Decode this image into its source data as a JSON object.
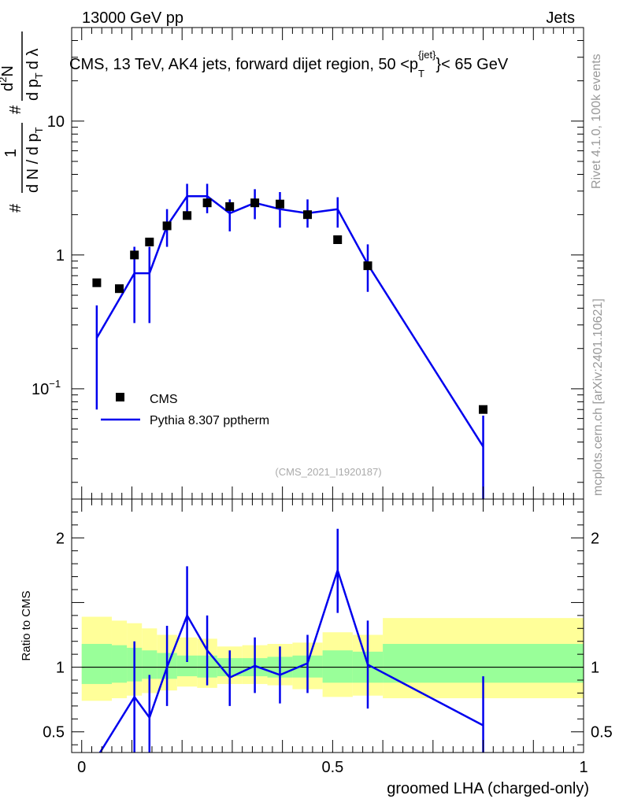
{
  "header": {
    "energy_label": "13000 GeV pp",
    "category_label": "Jets"
  },
  "side": {
    "rivet_label": "Rivet 4.1.0,  100k events",
    "site_label": "mcplots.cern.ch [arXiv:2401.10621]"
  },
  "chart_data": [
    {
      "type": "scatter",
      "panel": "main",
      "title": "CMS, 13 TeV, AK4 jets, forward dijet region, 50 <p_T^{jet}< 65 GeV",
      "title_parts": {
        "pre": "CMS, 13 TeV, AK4 jets, forward dijet region, 50 <p",
        "sub": "T",
        "sup": "{jet}",
        "post": "}< 65 GeV"
      },
      "ylabel_parts": [
        "#",
        "1",
        "d N / d p",
        "T",
        "#",
        "d",
        "N",
        "d p",
        "T",
        "d λ",
        "2"
      ],
      "y_scale": "log",
      "ylim": [
        0.015,
        50
      ],
      "xlim": [
        -0.02,
        1.0
      ],
      "y_ticks": [
        {
          "value": 0.1,
          "label": "10",
          "exp": "−1"
        },
        {
          "value": 1,
          "label": "1",
          "exp": ""
        },
        {
          "value": 10,
          "label": "10",
          "exp": ""
        }
      ],
      "watermark": "(CMS_2021_I1920187)",
      "legend": [
        {
          "name": "CMS",
          "marker": "square"
        },
        {
          "name": "Pythia 8.307 pptherm",
          "marker": "line"
        }
      ],
      "series": [
        {
          "name": "CMS",
          "x": [
            0.03,
            0.075,
            0.105,
            0.135,
            0.17,
            0.21,
            0.25,
            0.295,
            0.345,
            0.395,
            0.45,
            0.51,
            0.57,
            0.8
          ],
          "y": [
            0.62,
            0.56,
            1.0,
            1.25,
            1.65,
            1.97,
            2.45,
            2.3,
            2.45,
            2.4,
            2.0,
            1.3,
            0.83,
            0.07
          ]
        },
        {
          "name": "Pythia 8.307 pptherm",
          "x": [
            0.03,
            0.105,
            0.135,
            0.17,
            0.21,
            0.25,
            0.295,
            0.345,
            0.395,
            0.45,
            0.51,
            0.57,
            0.8
          ],
          "y": [
            0.24,
            0.73,
            0.73,
            1.65,
            2.75,
            2.75,
            2.05,
            2.45,
            2.2,
            2.05,
            2.2,
            0.85,
            0.037
          ],
          "err_low": [
            0.07,
            0.31,
            0.31,
            1.15,
            2.0,
            2.05,
            1.5,
            1.85,
            1.6,
            1.6,
            1.6,
            0.53,
            0.012
          ],
          "err_high": [
            0.42,
            1.15,
            1.15,
            2.2,
            3.4,
            3.4,
            2.6,
            3.1,
            2.95,
            2.6,
            2.7,
            1.2,
            0.063
          ]
        }
      ]
    },
    {
      "type": "line",
      "panel": "ratio",
      "ylabel": "Ratio to CMS",
      "xlabel": "groomed LHA (charged-only)",
      "y_scale": "linear",
      "xlim": [
        -0.02,
        1.0
      ],
      "ylim": [
        0.34,
        2.3
      ],
      "x_ticks": [
        {
          "value": 0,
          "label": "0"
        },
        {
          "value": 0.5,
          "label": "0.5"
        },
        {
          "value": 1,
          "label": "1"
        }
      ],
      "y_ticks": [
        {
          "value": 0.5,
          "label": "0.5"
        },
        {
          "value": 1,
          "label": "1"
        },
        {
          "value": 2,
          "label": "2"
        }
      ],
      "bands": [
        {
          "x0": 0.0,
          "x1": 0.06,
          "outer": [
            0.74,
            1.39
          ],
          "inner": [
            0.87,
            1.18
          ]
        },
        {
          "x0": 0.06,
          "x1": 0.09,
          "outer": [
            0.76,
            1.36
          ],
          "inner": [
            0.88,
            1.17
          ]
        },
        {
          "x0": 0.09,
          "x1": 0.12,
          "outer": [
            0.78,
            1.34
          ],
          "inner": [
            0.89,
            1.15
          ]
        },
        {
          "x0": 0.12,
          "x1": 0.15,
          "outer": [
            0.8,
            1.3
          ],
          "inner": [
            0.91,
            1.13
          ]
        },
        {
          "x0": 0.15,
          "x1": 0.19,
          "outer": [
            0.82,
            1.25
          ],
          "inner": [
            0.91,
            1.11
          ]
        },
        {
          "x0": 0.19,
          "x1": 0.23,
          "outer": [
            0.85,
            1.23
          ],
          "inner": [
            0.93,
            1.09
          ]
        },
        {
          "x0": 0.23,
          "x1": 0.27,
          "outer": [
            0.84,
            1.22
          ],
          "inner": [
            0.92,
            1.09
          ]
        },
        {
          "x0": 0.27,
          "x1": 0.32,
          "outer": [
            0.87,
            1.16
          ],
          "inner": [
            0.93,
            1.07
          ]
        },
        {
          "x0": 0.32,
          "x1": 0.37,
          "outer": [
            0.87,
            1.17
          ],
          "inner": [
            0.93,
            1.07
          ]
        },
        {
          "x0": 0.37,
          "x1": 0.42,
          "outer": [
            0.86,
            1.18
          ],
          "inner": [
            0.92,
            1.08
          ]
        },
        {
          "x0": 0.42,
          "x1": 0.48,
          "outer": [
            0.83,
            1.19
          ],
          "inner": [
            0.92,
            1.09
          ]
        },
        {
          "x0": 0.48,
          "x1": 0.54,
          "outer": [
            0.77,
            1.27
          ],
          "inner": [
            0.88,
            1.13
          ]
        },
        {
          "x0": 0.54,
          "x1": 0.6,
          "outer": [
            0.78,
            1.25
          ],
          "inner": [
            0.88,
            1.12
          ]
        },
        {
          "x0": 0.6,
          "x1": 1.0,
          "outer": [
            0.76,
            1.38
          ],
          "inner": [
            0.88,
            1.18
          ]
        }
      ],
      "series": [
        {
          "name": "Pythia 8.307 pptherm / CMS",
          "x": [
            0.03,
            0.105,
            0.135,
            0.17,
            0.21,
            0.25,
            0.295,
            0.345,
            0.395,
            0.45,
            0.51,
            0.57,
            0.8
          ],
          "y": [
            0.3,
            0.77,
            0.61,
            1.0,
            1.4,
            1.13,
            0.92,
            1.01,
            0.94,
            1.03,
            1.75,
            1.02,
            0.55
          ],
          "err_low": [
            0.0,
            0.34,
            0.25,
            0.7,
            1.04,
            0.86,
            0.7,
            0.8,
            0.72,
            0.8,
            1.42,
            0.68,
            0.2
          ],
          "err_high": [
            0.0,
            1.2,
            0.94,
            1.32,
            1.78,
            1.4,
            1.13,
            1.23,
            1.16,
            1.25,
            2.07,
            1.36,
            0.93
          ]
        }
      ]
    }
  ]
}
